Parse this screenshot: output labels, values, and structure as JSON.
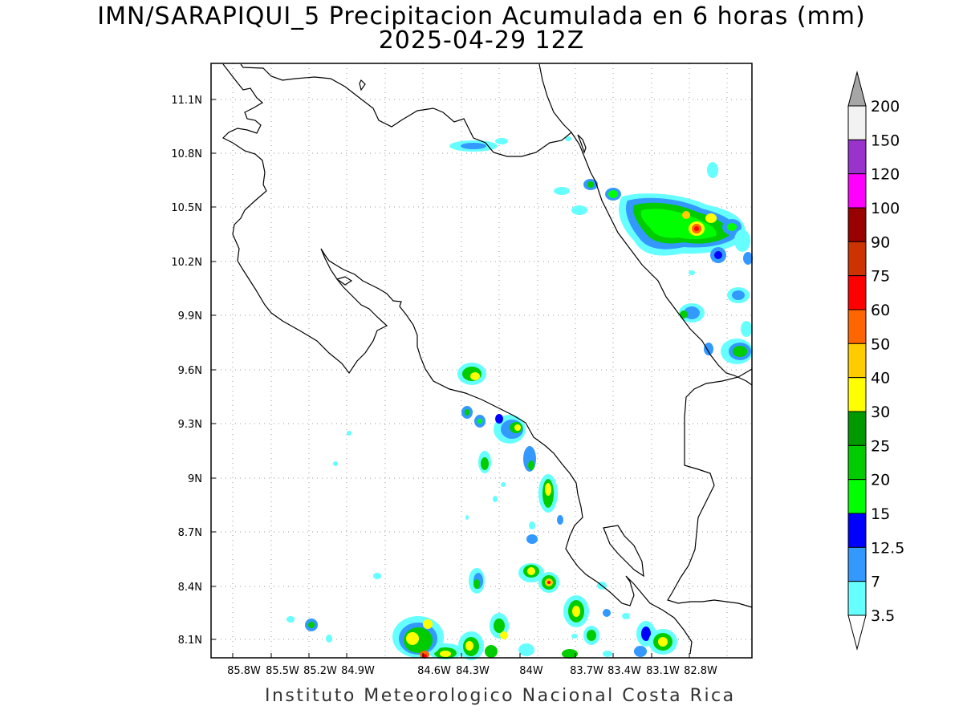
{
  "title": {
    "line1": "IMN/SARAPIQUI_5 Precipitacion Acumulada en 6 horas (mm)",
    "line2": "2025-04-29 12Z"
  },
  "footer": "Instituto Meteorologico Nacional Costa Rica",
  "map": {
    "lon_labels": [
      "85.8W",
      "85.5W",
      "85.2W",
      "84.9W",
      "84.6W",
      "84.3W",
      "84W",
      "83.7W",
      "83.4W",
      "83.1W",
      "82.8W"
    ],
    "lat_labels": [
      "11.1N",
      "10.8N",
      "10.5N",
      "10.2N",
      "9.9N",
      "9.6N",
      "9.3N",
      "9N",
      "8.7N",
      "8.4N",
      "8.1N"
    ],
    "lon_range": [
      -86.0,
      -83.0
    ],
    "lat_range": [
      8.0,
      11.2
    ],
    "grid": true
  },
  "colorbar": {
    "labels": [
      "200",
      "150",
      "120",
      "100",
      "90",
      "75",
      "60",
      "50",
      "40",
      "30",
      "25",
      "20",
      "15",
      "12.5",
      "7",
      "3.5"
    ],
    "colors": [
      "#f2f2f2",
      "#9933cc",
      "#ff00ff",
      "#990000",
      "#cc3300",
      "#ff0000",
      "#ff6600",
      "#ffcc00",
      "#ffff00",
      "#009900",
      "#00cc00",
      "#00ff00",
      "#0000ff",
      "#3399ff",
      "#66ffff"
    ],
    "top_arrow_color": "#a6a6a6",
    "bottom_arrow_color": "#ffffff"
  }
}
